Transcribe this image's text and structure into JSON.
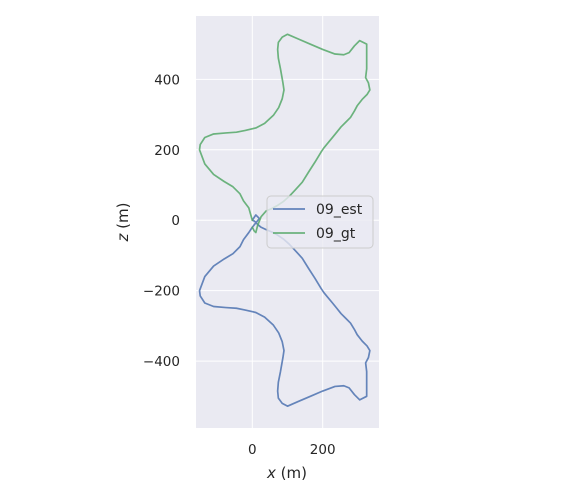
{
  "chart_data": {
    "type": "line",
    "xlabel": "x (m)",
    "ylabel": "z (m)",
    "xlabel_var": "x",
    "xlabel_unit": " (m)",
    "ylabel_var": "z",
    "ylabel_unit": " (m)",
    "xlim": [
      -160,
      360
    ],
    "ylim": [
      -590,
      580
    ],
    "xticks": [
      0,
      200
    ],
    "yticks": [
      -400,
      -200,
      0,
      200,
      400
    ],
    "xtick_labels": [
      "0",
      "200"
    ],
    "ytick_labels": [
      "−400",
      "−200",
      "0",
      "200",
      "400"
    ],
    "grid": true,
    "legend_position": "center-right",
    "series": [
      {
        "name": "09_est",
        "color": "#4c72b0",
        "x": [
          0,
          10,
          20,
          12,
          0,
          -10,
          -25,
          -35,
          -55,
          -80,
          -110,
          -135,
          -150,
          -148,
          -135,
          -110,
          -75,
          -45,
          -20,
          10,
          35,
          60,
          75,
          85,
          90,
          87,
          80,
          74,
          72,
          74,
          85,
          100,
          130,
          165,
          200,
          235,
          260,
          275,
          290,
          305,
          325,
          325,
          325,
          322,
          330,
          334,
          326,
          312,
          298,
          290,
          279,
          265,
          252,
          240,
          227,
          212,
          203,
          195,
          178,
          160,
          142,
          122,
          105,
          88,
          70,
          55,
          40,
          25,
          15,
          10,
          5,
          0
        ],
        "y": [
          0,
          15,
          5,
          -5,
          -20,
          -35,
          -55,
          -75,
          -95,
          -110,
          -130,
          -160,
          -200,
          -215,
          -235,
          -245,
          -248,
          -250,
          -255,
          -262,
          -275,
          -298,
          -320,
          -345,
          -370,
          -390,
          -430,
          -460,
          -485,
          -505,
          -520,
          -528,
          -515,
          -500,
          -485,
          -472,
          -470,
          -476,
          -495,
          -510,
          -500,
          -460,
          -430,
          -405,
          -390,
          -370,
          -357,
          -343,
          -325,
          -310,
          -292,
          -278,
          -265,
          -250,
          -234,
          -216,
          -205,
          -193,
          -165,
          -137,
          -108,
          -86,
          -68,
          -53,
          -41,
          -33,
          -27,
          -20,
          -12,
          -6,
          -2,
          0
        ]
      },
      {
        "name": "09_gt",
        "color": "#55a868",
        "x": [
          0,
          -10,
          -25,
          -35,
          -55,
          -80,
          -110,
          -135,
          -150,
          -148,
          -135,
          -110,
          -75,
          -45,
          -20,
          10,
          35,
          60,
          75,
          85,
          90,
          87,
          80,
          74,
          72,
          74,
          85,
          100,
          130,
          165,
          200,
          235,
          260,
          275,
          290,
          305,
          325,
          325,
          325,
          322,
          330,
          334,
          326,
          312,
          298,
          290,
          279,
          265,
          252,
          240,
          227,
          212,
          203,
          195,
          178,
          160,
          142,
          122,
          105,
          88,
          70,
          55,
          40,
          25,
          15,
          10,
          5,
          0
        ],
        "y": [
          0,
          35,
          55,
          75,
          95,
          110,
          130,
          160,
          200,
          215,
          235,
          245,
          248,
          250,
          255,
          262,
          275,
          298,
          320,
          345,
          370,
          390,
          430,
          460,
          485,
          505,
          520,
          528,
          515,
          500,
          485,
          472,
          470,
          476,
          495,
          510,
          500,
          460,
          430,
          405,
          390,
          370,
          357,
          343,
          325,
          310,
          292,
          278,
          265,
          250,
          234,
          216,
          205,
          193,
          165,
          137,
          108,
          86,
          68,
          53,
          41,
          33,
          27,
          10,
          -15,
          -35,
          -30,
          -20
        ]
      }
    ]
  }
}
